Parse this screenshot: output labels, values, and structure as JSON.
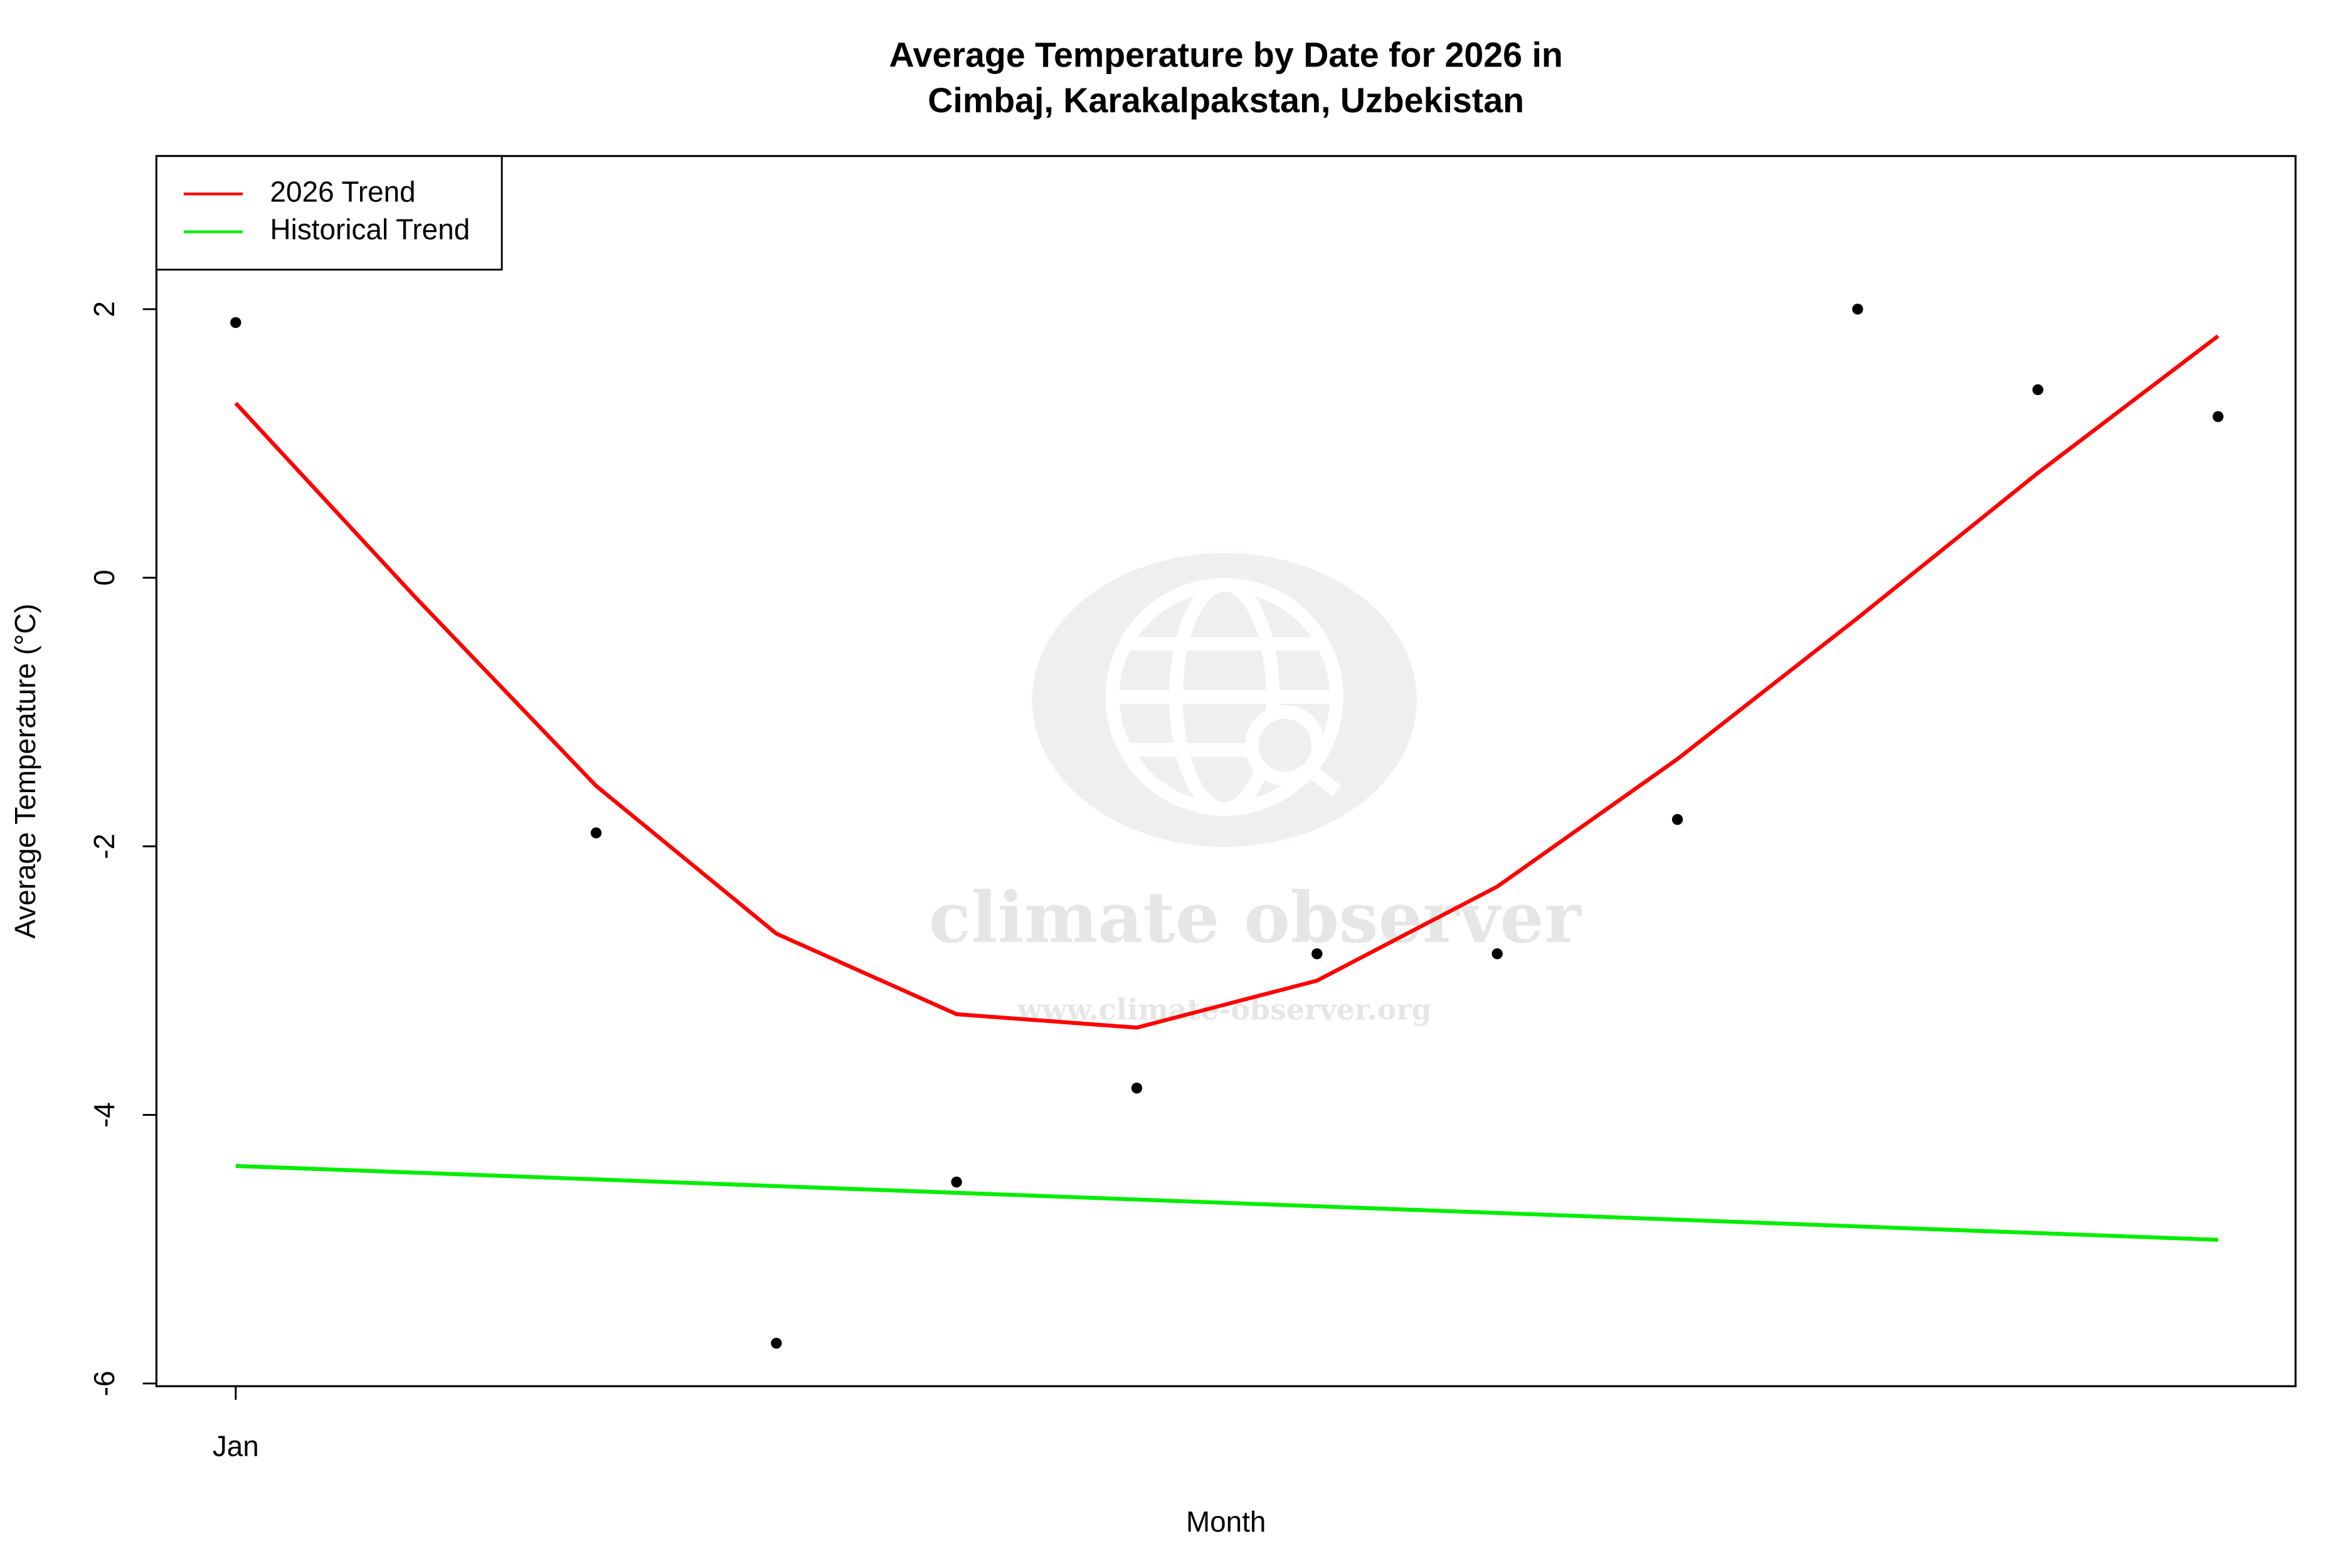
{
  "chart_data": {
    "type": "line",
    "title": "Average Temperature by Date for 2026 in",
    "subtitle": "Cimbaj, Karakalpakstan, Uzbekistan",
    "x_label": "Month",
    "y_label": "Average Temperature (°C)",
    "categories": [
      "Jan",
      null,
      null,
      null,
      null,
      null,
      null,
      null,
      null,
      null,
      null,
      null
    ],
    "xlim": [
      -0.44,
      11.43
    ],
    "ylim": [
      -6.02,
      3.14
    ],
    "yticks": [
      -6,
      -4,
      -2,
      0,
      2
    ],
    "points": {
      "color": "#000000",
      "values": [
        1.9,
        null,
        -1.9,
        -5.7,
        -4.5,
        -3.8,
        -2.8,
        -2.8,
        -1.8,
        2.0,
        1.4,
        1.2
      ]
    },
    "series": [
      {
        "name": "2026 Trend",
        "color": "#ff0000",
        "values": [
          1.3,
          -0.15,
          -1.55,
          -2.65,
          -3.25,
          -3.35,
          -3.0,
          -2.3,
          -1.35,
          -0.3,
          0.78,
          1.8
        ]
      },
      {
        "name": "Historical Trend",
        "color": "#00ee00",
        "values": [
          -4.38,
          -4.43,
          -4.48,
          -4.53,
          -4.58,
          -4.63,
          -4.68,
          -4.73,
          -4.78,
          -4.83,
          -4.88,
          -4.93
        ]
      }
    ],
    "legend": "top-left",
    "watermark": {
      "name": "climate observer",
      "url": "www.climate-observer.org"
    }
  }
}
